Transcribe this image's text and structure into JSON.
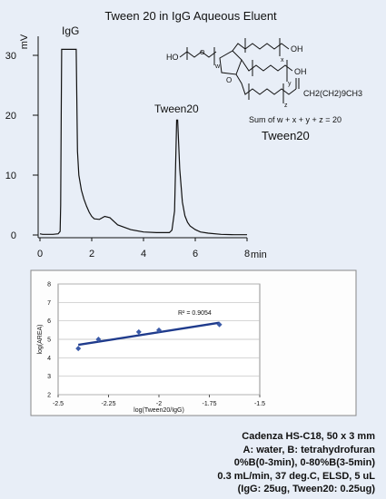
{
  "title": "Tween 20 in IgG Aqueous Eluent",
  "chart_data": [
    {
      "type": "line",
      "title": "Tween 20 in IgG Aqueous Eluent",
      "ylabel": "mV",
      "xlabel": "min",
      "xlim": [
        0,
        8
      ],
      "ylim": [
        0,
        30
      ],
      "xticks": [
        "0",
        "2",
        "4",
        "6",
        "8"
      ],
      "yticks": [
        "0",
        "10",
        "20",
        "30"
      ],
      "annotations": [
        "IgG",
        "Tween20"
      ],
      "series": [
        {
          "x": [
            0,
            0.1,
            0.5,
            0.7,
            0.78,
            0.8,
            0.82,
            0.84,
            0.9,
            1.0,
            1.1,
            1.2,
            1.3,
            1.36,
            1.4,
            1.43,
            1.45,
            1.5,
            1.6,
            1.7,
            1.8,
            1.9,
            2.0,
            2.1,
            2.3,
            2.5,
            2.7,
            3.0,
            3.5,
            4.0,
            4.5,
            5.0,
            5.1,
            5.2,
            5.28,
            5.32,
            5.4,
            5.5,
            5.6,
            5.7,
            5.8,
            6.0,
            6.2,
            6.5,
            7.0,
            7.5,
            8.0
          ],
          "y": [
            0.2,
            0.1,
            0.1,
            0.2,
            0.6,
            5,
            20,
            31,
            31,
            31,
            31,
            31,
            31,
            31,
            31,
            20,
            14,
            10,
            7.5,
            6,
            4.8,
            3.8,
            3.1,
            2.7,
            2.6,
            3.1,
            2.9,
            1.7,
            0.9,
            0.5,
            0.4,
            0.4,
            0.8,
            4,
            19.2,
            19.2,
            11,
            5.5,
            3.2,
            2.1,
            1.5,
            0.9,
            0.5,
            0.3,
            0.1,
            0.05,
            0.05
          ]
        }
      ]
    },
    {
      "type": "scatter",
      "xlabel": "log(Tween20/IgG)",
      "ylabel": "log(AREA)",
      "xlim": [
        -2.5,
        -1.5
      ],
      "ylim": [
        2,
        8
      ],
      "xticks": [
        "-2.5",
        "-2.25",
        "-2",
        "-1.75",
        "-1.5"
      ],
      "yticks": [
        "2",
        "3",
        "4",
        "5",
        "6",
        "7",
        "8"
      ],
      "grid": true,
      "annotation": "R² = 0.9054",
      "points": {
        "x": [
          -2.4,
          -2.3,
          -2.1,
          -2.0,
          -1.7
        ],
        "y": [
          4.5,
          5.0,
          5.4,
          5.5,
          5.8
        ]
      },
      "trendline": {
        "x": [
          -2.4,
          -1.7
        ],
        "y": [
          4.7,
          5.9
        ]
      }
    }
  ],
  "structure": {
    "labels": {
      "ho": "HO",
      "w": "w",
      "x": "x",
      "y": "y",
      "z": "z",
      "oh": "OH",
      "chain": "CH2(CH2)9CH3",
      "sum": "Sum of w + x + y + z = 20",
      "name": "Tween20"
    }
  },
  "conditions": {
    "lines": [
      "Cadenza HS-C18, 50 x 3 mm",
      "A: water, B: tetrahydrofuran",
      "0%B(0-3min), 0-80%B(3-5min)",
      "0.3 mL/min, 37 deg.C, ELSD, 5 uL",
      "(IgG: 25ug, Tween20: 0.25ug)"
    ]
  },
  "colors": {
    "background": "#e8eef7",
    "trace": "#111111",
    "scatter_points": "#3a5aa8",
    "trendline": "#1f3b8c",
    "grid": "#bdbdbd"
  }
}
